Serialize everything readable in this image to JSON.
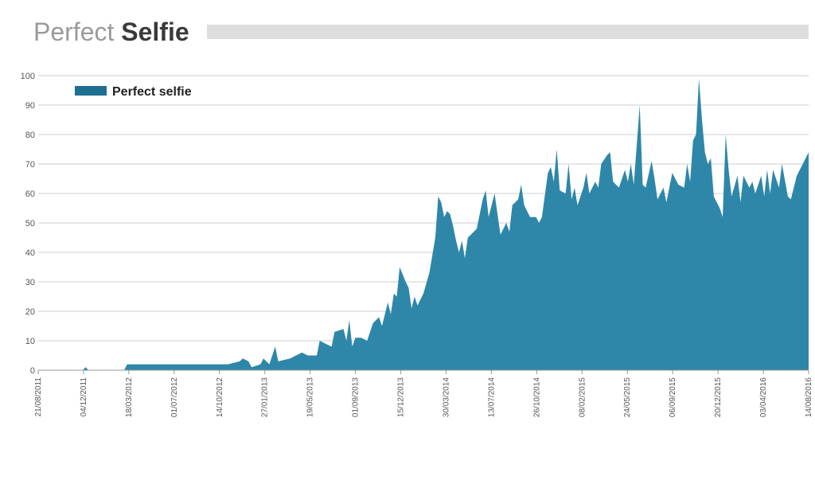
{
  "header": {
    "title_light": "Perfect ",
    "title_bold": "Selfie"
  },
  "colors": {
    "area": "#2e87a8",
    "legend": "#1f6f91",
    "grid": "#cccccc",
    "title_bar": "#dedede"
  },
  "chart_data": {
    "type": "area",
    "title": "Perfect Selfie",
    "xlabel": "",
    "ylabel": "",
    "ylim": [
      0,
      100
    ],
    "yticks": [
      0,
      10,
      20,
      30,
      40,
      50,
      60,
      70,
      80,
      90,
      100
    ],
    "xlim": [
      "2011-08-21",
      "2016-08-14"
    ],
    "xtick_labels": [
      "21/08/2011",
      "04/12/2011",
      "18/03/2012",
      "01/07/2012",
      "14/10/2012",
      "27/01/2013",
      "19/05/2013",
      "01/09/2013",
      "15/12/2013",
      "30/03/2014",
      "13/07/2014",
      "26/10/2014",
      "08/02/2015",
      "24/05/2015",
      "06/09/2015",
      "20/12/2015",
      "03/04/2016",
      "14/08/2016"
    ],
    "grid": true,
    "legend_position": "top-left",
    "series": [
      {
        "name": "Perfect selfie",
        "points": [
          [
            "2011-08-21",
            0
          ],
          [
            "2011-12-04",
            0
          ],
          [
            "2011-12-11",
            1
          ],
          [
            "2011-12-18",
            0
          ],
          [
            "2012-03-11",
            0
          ],
          [
            "2012-03-18",
            2
          ],
          [
            "2012-07-01",
            2
          ],
          [
            "2012-10-14",
            2
          ],
          [
            "2012-11-11",
            2
          ],
          [
            "2012-12-09",
            3
          ],
          [
            "2012-12-16",
            4
          ],
          [
            "2012-12-30",
            3
          ],
          [
            "2013-01-06",
            1
          ],
          [
            "2013-01-27",
            2
          ],
          [
            "2013-02-03",
            4
          ],
          [
            "2013-02-17",
            2
          ],
          [
            "2013-03-03",
            8
          ],
          [
            "2013-03-10",
            3
          ],
          [
            "2013-04-07",
            4
          ],
          [
            "2013-05-05",
            6
          ],
          [
            "2013-05-19",
            5
          ],
          [
            "2013-06-09",
            5
          ],
          [
            "2013-06-16",
            10
          ],
          [
            "2013-06-30",
            9
          ],
          [
            "2013-07-14",
            8
          ],
          [
            "2013-07-21",
            13
          ],
          [
            "2013-08-11",
            14
          ],
          [
            "2013-08-18",
            10
          ],
          [
            "2013-08-25",
            17
          ],
          [
            "2013-09-01",
            8
          ],
          [
            "2013-09-08",
            11
          ],
          [
            "2013-09-22",
            11
          ],
          [
            "2013-10-06",
            10
          ],
          [
            "2013-10-20",
            16
          ],
          [
            "2013-11-03",
            18
          ],
          [
            "2013-11-10",
            15
          ],
          [
            "2013-11-24",
            23
          ],
          [
            "2013-12-01",
            19
          ],
          [
            "2013-12-08",
            26
          ],
          [
            "2013-12-15",
            25
          ],
          [
            "2013-12-22",
            35
          ],
          [
            "2014-01-05",
            30
          ],
          [
            "2014-01-12",
            28
          ],
          [
            "2014-01-19",
            21
          ],
          [
            "2014-01-26",
            25
          ],
          [
            "2014-02-02",
            22
          ],
          [
            "2014-02-16",
            26
          ],
          [
            "2014-03-02",
            33
          ],
          [
            "2014-03-16",
            45
          ],
          [
            "2014-03-23",
            59
          ],
          [
            "2014-03-30",
            57
          ],
          [
            "2014-04-06",
            52
          ],
          [
            "2014-04-13",
            54
          ],
          [
            "2014-04-20",
            53
          ],
          [
            "2014-04-27",
            49
          ],
          [
            "2014-05-04",
            44
          ],
          [
            "2014-05-11",
            40
          ],
          [
            "2014-05-18",
            44
          ],
          [
            "2014-05-25",
            38
          ],
          [
            "2014-06-01",
            45
          ],
          [
            "2014-06-08",
            46
          ],
          [
            "2014-06-22",
            48
          ],
          [
            "2014-07-06",
            58
          ],
          [
            "2014-07-13",
            61
          ],
          [
            "2014-07-20",
            52
          ],
          [
            "2014-08-03",
            60
          ],
          [
            "2014-08-10",
            53
          ],
          [
            "2014-08-17",
            46
          ],
          [
            "2014-08-31",
            50
          ],
          [
            "2014-09-07",
            47
          ],
          [
            "2014-09-14",
            56
          ],
          [
            "2014-09-28",
            58
          ],
          [
            "2014-10-05",
            63
          ],
          [
            "2014-10-12",
            56
          ],
          [
            "2014-10-19",
            54
          ],
          [
            "2014-10-26",
            52
          ],
          [
            "2014-11-09",
            52
          ],
          [
            "2014-11-16",
            50
          ],
          [
            "2014-11-23",
            52
          ],
          [
            "2014-12-07",
            67
          ],
          [
            "2014-12-14",
            69
          ],
          [
            "2014-12-21",
            64
          ],
          [
            "2014-12-28",
            75
          ],
          [
            "2015-01-04",
            61
          ],
          [
            "2015-01-18",
            60
          ],
          [
            "2015-01-25",
            70
          ],
          [
            "2015-02-01",
            58
          ],
          [
            "2015-02-08",
            62
          ],
          [
            "2015-02-15",
            56
          ],
          [
            "2015-03-01",
            62
          ],
          [
            "2015-03-08",
            67
          ],
          [
            "2015-03-15",
            60
          ],
          [
            "2015-03-29",
            64
          ],
          [
            "2015-04-05",
            62
          ],
          [
            "2015-04-12",
            70
          ],
          [
            "2015-04-26",
            73
          ],
          [
            "2015-05-03",
            74
          ],
          [
            "2015-05-10",
            64
          ],
          [
            "2015-05-24",
            62
          ],
          [
            "2015-06-07",
            68
          ],
          [
            "2015-06-14",
            64
          ],
          [
            "2015-06-21",
            70
          ],
          [
            "2015-06-28",
            63
          ],
          [
            "2015-07-12",
            90
          ],
          [
            "2015-07-19",
            63
          ],
          [
            "2015-07-26",
            62
          ],
          [
            "2015-08-09",
            71
          ],
          [
            "2015-08-16",
            65
          ],
          [
            "2015-08-23",
            58
          ],
          [
            "2015-09-06",
            62
          ],
          [
            "2015-09-13",
            57
          ],
          [
            "2015-09-20",
            62
          ],
          [
            "2015-09-27",
            67
          ],
          [
            "2015-10-11",
            63
          ],
          [
            "2015-10-25",
            62
          ],
          [
            "2015-11-01",
            70
          ],
          [
            "2015-11-08",
            64
          ],
          [
            "2015-11-15",
            78
          ],
          [
            "2015-11-22",
            80
          ],
          [
            "2015-11-29",
            99
          ],
          [
            "2015-12-06",
            85
          ],
          [
            "2015-12-13",
            74
          ],
          [
            "2015-12-20",
            70
          ],
          [
            "2015-12-27",
            72
          ],
          [
            "2016-01-03",
            59
          ],
          [
            "2016-01-17",
            55
          ],
          [
            "2016-01-24",
            52
          ],
          [
            "2016-01-31",
            80
          ],
          [
            "2016-02-07",
            68
          ],
          [
            "2016-02-14",
            59
          ],
          [
            "2016-02-28",
            66
          ],
          [
            "2016-03-06",
            57
          ],
          [
            "2016-03-13",
            66
          ],
          [
            "2016-03-27",
            62
          ],
          [
            "2016-04-03",
            64
          ],
          [
            "2016-04-10",
            60
          ],
          [
            "2016-04-24",
            66
          ],
          [
            "2016-05-01",
            59
          ],
          [
            "2016-05-08",
            68
          ],
          [
            "2016-05-15",
            60
          ],
          [
            "2016-05-22",
            68
          ],
          [
            "2016-06-05",
            62
          ],
          [
            "2016-06-12",
            70
          ],
          [
            "2016-06-26",
            59
          ],
          [
            "2016-07-03",
            58
          ],
          [
            "2016-07-17",
            66
          ],
          [
            "2016-07-31",
            70
          ],
          [
            "2016-08-14",
            74
          ]
        ]
      }
    ]
  }
}
